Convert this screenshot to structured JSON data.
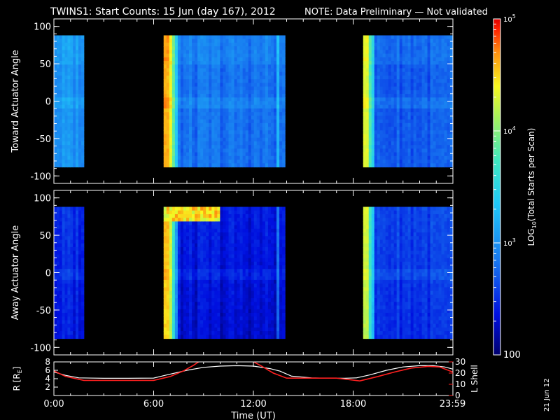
{
  "header": {
    "title": "TWINS1: Start Counts: 15 Jun (day 167), 2012",
    "note": "NOTE: Data Preliminary — Not validated"
  },
  "side_date": "21 Jun 12",
  "colors": {
    "note": "#ff2020",
    "lshell": "#ff2020",
    "radius": "#ffffff",
    "frame": "#ffffff",
    "background": "#000000"
  },
  "chart_data": [
    {
      "type": "heatmap",
      "ylabel": "Toward Actuator Angle",
      "ylim": [
        -110,
        110
      ],
      "yticks": [
        -100,
        -50,
        0,
        50,
        100
      ],
      "xlim": [
        0,
        24
      ],
      "data_intervals_ut_hours": [
        [
          0.0,
          1.8
        ],
        [
          6.6,
          13.9
        ],
        [
          18.6,
          23.98
        ]
      ],
      "angle_range": [
        -88,
        88
      ],
      "approx_log10_counts": {
        "interval_1": 3.0,
        "interval_2_leading_edge": 4.6,
        "interval_2_body": 2.8,
        "interval_3_leading_edge": 4.3,
        "interval_3_body": 2.7
      }
    },
    {
      "type": "heatmap",
      "ylabel": "Away Actuator Angle",
      "ylim": [
        -110,
        110
      ],
      "yticks": [
        -100,
        -50,
        0,
        50,
        100
      ],
      "xlim": [
        0,
        24
      ],
      "data_intervals_ut_hours": [
        [
          0.0,
          1.8
        ],
        [
          6.6,
          13.9
        ],
        [
          18.6,
          23.98
        ]
      ],
      "angle_range": [
        -88,
        88
      ],
      "approx_log10_counts": {
        "interval_1": 2.5,
        "interval_2_leading_edge": 4.6,
        "interval_2_body": 2.4,
        "interval_3_leading_edge": 4.3,
        "interval_3_body": 2.6
      }
    },
    {
      "type": "line",
      "xlabel": "Time (UT)",
      "xticks": [
        "0:00",
        "6:00",
        "12:00",
        "18:00",
        "23:59"
      ],
      "xtick_hours": [
        0,
        6,
        12,
        18,
        23.98
      ],
      "ylabel_left": "R [RE]",
      "ylabel_left_sub": "E",
      "ylim_left": [
        0,
        8
      ],
      "yticks_left": [
        0,
        2,
        4,
        6,
        8
      ],
      "ylabel_right": "L Shell",
      "ylim_right": [
        0,
        30
      ],
      "yticks_right": [
        0,
        10,
        20,
        30
      ],
      "series": [
        {
          "name": "R [RE]",
          "axis": "left",
          "x": [
            0,
            0.7,
            1.5,
            3,
            4.5,
            6.0,
            6.8,
            8,
            9,
            10,
            11,
            12,
            13,
            13.6,
            14.3,
            15.5,
            16.5,
            17.5,
            18.2,
            19,
            20,
            21,
            22,
            22.8,
            23.5,
            23.98
          ],
          "y": [
            5.6,
            4.8,
            4.2,
            4.1,
            4.1,
            4.15,
            4.9,
            6.0,
            6.7,
            7.0,
            7.1,
            7.0,
            6.4,
            5.8,
            4.6,
            4.2,
            4.1,
            4.1,
            4.2,
            4.9,
            6.0,
            6.8,
            7.1,
            7.1,
            6.8,
            6.3
          ]
        },
        {
          "name": "L Shell",
          "axis": "right",
          "x": [
            0,
            0.7,
            1.8,
            3,
            4.5,
            6.0,
            7.0,
            7.8,
            8.4,
            8.8,
            11.9,
            12.4,
            13.2,
            14.0,
            15.5,
            17,
            18.4,
            19.5,
            20.5,
            21.5,
            22.5,
            23.2,
            23.98
          ],
          "y": [
            22,
            17,
            13.5,
            13.5,
            13.5,
            13.5,
            17,
            22,
            27,
            31,
            31,
            27,
            20,
            15.5,
            15.5,
            15.5,
            13,
            17,
            21,
            24.5,
            26,
            25.5,
            21
          ]
        }
      ]
    },
    {
      "type": "heatmap",
      "role": "colorbar",
      "label": "LOG10(Total Starts per Scan)",
      "label_main": "LOG",
      "label_sub": "10",
      "label_rest": "(Total Starts per Scan)",
      "range_log10": [
        2,
        5
      ],
      "major_tick_labels": [
        {
          "base": "100",
          "exp": "",
          "value": 2
        },
        {
          "base": "10",
          "exp": "3",
          "value": 3
        },
        {
          "base": "10",
          "exp": "4",
          "value": 4
        },
        {
          "base": "10",
          "exp": "5",
          "value": 5
        }
      ],
      "minor_tick_values": [
        2.301,
        2.477,
        2.602,
        2.699,
        2.778,
        2.845,
        2.903,
        2.954,
        3.301,
        3.477,
        3.602,
        3.699,
        3.778,
        3.845,
        3.903,
        3.954,
        4.301,
        4.477,
        4.602,
        4.699,
        4.778,
        4.845,
        4.903,
        4.954
      ]
    }
  ]
}
